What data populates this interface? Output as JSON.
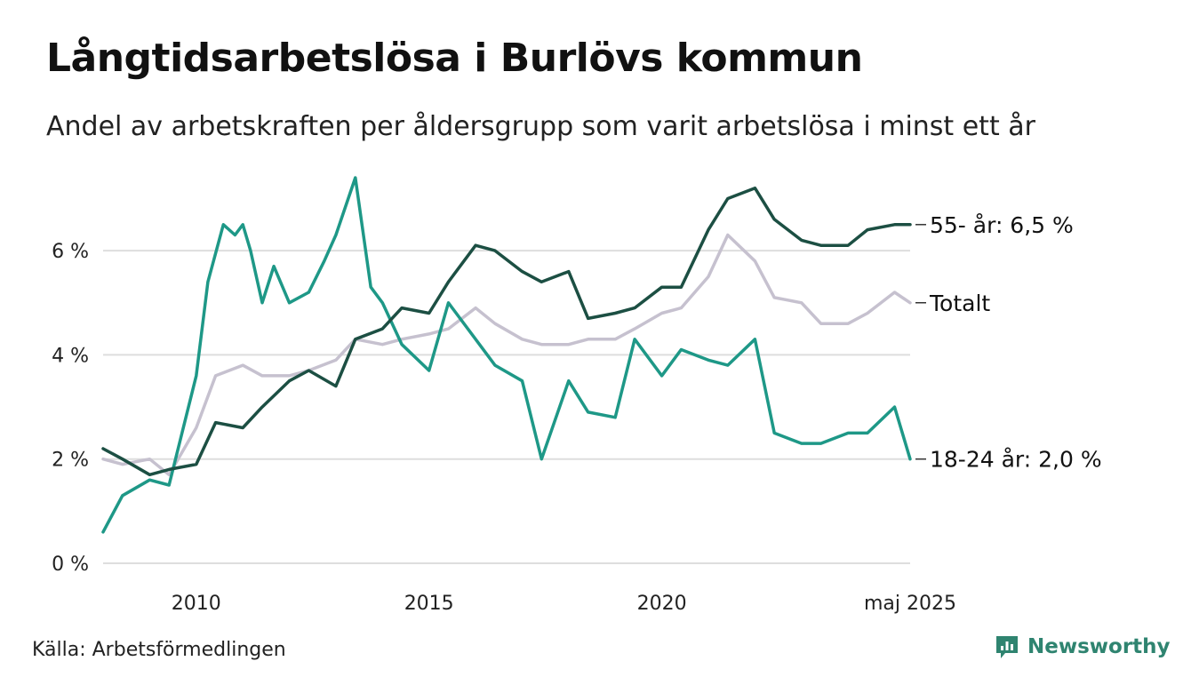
{
  "title": "Långtidsarbetslösa i Burlövs kommun",
  "subtitle": "Andel av arbetskraften per åldersgrupp som varit arbetslösa i minst ett år",
  "source": "Källa: Arbetsförmedlingen",
  "brand": {
    "name": "Newsworthy",
    "icon": "newsworthy-logo-icon",
    "color": "#2f8470"
  },
  "chart_data": {
    "type": "line",
    "x_range": [
      "2008-01",
      "2025-05"
    ],
    "ylim": [
      0,
      7.4
    ],
    "y_ticks": [
      {
        "value": 0,
        "label": "0 %"
      },
      {
        "value": 2,
        "label": "2 %"
      },
      {
        "value": 4,
        "label": "4 %"
      },
      {
        "value": 6,
        "label": "6 %"
      }
    ],
    "x_ticks": [
      {
        "value": "2010-01",
        "label": "2010"
      },
      {
        "value": "2015-01",
        "label": "2015"
      },
      {
        "value": "2020-01",
        "label": "2020"
      },
      {
        "value": "2025-05",
        "label": "maj 2025"
      }
    ],
    "grid": true,
    "legend": "end-of-line labels",
    "colors": {
      "grid": "#dedede",
      "axis_text": "#222222"
    },
    "series": [
      {
        "name": "Totalt",
        "label": "Totalt",
        "color": "#c6c1cf",
        "points": [
          [
            "2008-01",
            2.0
          ],
          [
            "2008-06",
            1.9
          ],
          [
            "2009-01",
            2.0
          ],
          [
            "2009-06",
            1.7
          ],
          [
            "2010-01",
            2.6
          ],
          [
            "2010-06",
            3.6
          ],
          [
            "2011-01",
            3.8
          ],
          [
            "2011-06",
            3.6
          ],
          [
            "2012-01",
            3.6
          ],
          [
            "2012-06",
            3.7
          ],
          [
            "2013-01",
            3.9
          ],
          [
            "2013-06",
            4.3
          ],
          [
            "2014-01",
            4.2
          ],
          [
            "2014-06",
            4.3
          ],
          [
            "2015-01",
            4.4
          ],
          [
            "2015-06",
            4.5
          ],
          [
            "2016-01",
            4.9
          ],
          [
            "2016-06",
            4.6
          ],
          [
            "2017-01",
            4.3
          ],
          [
            "2017-06",
            4.2
          ],
          [
            "2018-01",
            4.2
          ],
          [
            "2018-06",
            4.3
          ],
          [
            "2019-01",
            4.3
          ],
          [
            "2019-06",
            4.5
          ],
          [
            "2020-01",
            4.8
          ],
          [
            "2020-06",
            4.9
          ],
          [
            "2021-01",
            5.5
          ],
          [
            "2021-06",
            6.3
          ],
          [
            "2022-01",
            5.8
          ],
          [
            "2022-06",
            5.1
          ],
          [
            "2023-01",
            5.0
          ],
          [
            "2023-06",
            4.6
          ],
          [
            "2024-01",
            4.6
          ],
          [
            "2024-06",
            4.8
          ],
          [
            "2025-01",
            5.2
          ],
          [
            "2025-05",
            5.0
          ]
        ]
      },
      {
        "name": "18-24 år",
        "label": "18-24 år: 2,0 %",
        "color": "#1e9887",
        "points": [
          [
            "2008-01",
            0.6
          ],
          [
            "2008-06",
            1.3
          ],
          [
            "2009-01",
            1.6
          ],
          [
            "2009-06",
            1.5
          ],
          [
            "2010-01",
            3.6
          ],
          [
            "2010-04",
            5.4
          ],
          [
            "2010-08",
            6.5
          ],
          [
            "2010-11",
            6.3
          ],
          [
            "2011-01",
            6.5
          ],
          [
            "2011-03",
            6.0
          ],
          [
            "2011-06",
            5.0
          ],
          [
            "2011-09",
            5.7
          ],
          [
            "2012-01",
            5.0
          ],
          [
            "2012-06",
            5.2
          ],
          [
            "2012-10",
            5.8
          ],
          [
            "2013-01",
            6.3
          ],
          [
            "2013-06",
            7.4
          ],
          [
            "2013-10",
            5.3
          ],
          [
            "2014-01",
            5.0
          ],
          [
            "2014-06",
            4.2
          ],
          [
            "2015-01",
            3.7
          ],
          [
            "2015-06",
            5.0
          ],
          [
            "2016-01",
            4.3
          ],
          [
            "2016-06",
            3.8
          ],
          [
            "2017-01",
            3.5
          ],
          [
            "2017-06",
            2.0
          ],
          [
            "2018-01",
            3.5
          ],
          [
            "2018-06",
            2.9
          ],
          [
            "2019-01",
            2.8
          ],
          [
            "2019-06",
            4.3
          ],
          [
            "2020-01",
            3.6
          ],
          [
            "2020-06",
            4.1
          ],
          [
            "2021-01",
            3.9
          ],
          [
            "2021-06",
            3.8
          ],
          [
            "2022-01",
            4.3
          ],
          [
            "2022-06",
            2.5
          ],
          [
            "2023-01",
            2.3
          ],
          [
            "2023-06",
            2.3
          ],
          [
            "2024-01",
            2.5
          ],
          [
            "2024-06",
            2.5
          ],
          [
            "2025-01",
            3.0
          ],
          [
            "2025-05",
            2.0
          ]
        ]
      },
      {
        "name": "55- år",
        "label": "55- år: 6,5 %",
        "color": "#1c4f43",
        "points": [
          [
            "2008-01",
            2.2
          ],
          [
            "2008-06",
            2.0
          ],
          [
            "2009-01",
            1.7
          ],
          [
            "2009-06",
            1.8
          ],
          [
            "2010-01",
            1.9
          ],
          [
            "2010-06",
            2.7
          ],
          [
            "2011-01",
            2.6
          ],
          [
            "2011-06",
            3.0
          ],
          [
            "2012-01",
            3.5
          ],
          [
            "2012-06",
            3.7
          ],
          [
            "2013-01",
            3.4
          ],
          [
            "2013-06",
            4.3
          ],
          [
            "2014-01",
            4.5
          ],
          [
            "2014-06",
            4.9
          ],
          [
            "2015-01",
            4.8
          ],
          [
            "2015-06",
            5.4
          ],
          [
            "2016-01",
            6.1
          ],
          [
            "2016-06",
            6.0
          ],
          [
            "2017-01",
            5.6
          ],
          [
            "2017-06",
            5.4
          ],
          [
            "2018-01",
            5.6
          ],
          [
            "2018-06",
            4.7
          ],
          [
            "2019-01",
            4.8
          ],
          [
            "2019-06",
            4.9
          ],
          [
            "2020-01",
            5.3
          ],
          [
            "2020-06",
            5.3
          ],
          [
            "2021-01",
            6.4
          ],
          [
            "2021-06",
            7.0
          ],
          [
            "2022-01",
            7.2
          ],
          [
            "2022-06",
            6.6
          ],
          [
            "2023-01",
            6.2
          ],
          [
            "2023-06",
            6.1
          ],
          [
            "2024-01",
            6.1
          ],
          [
            "2024-06",
            6.4
          ],
          [
            "2025-01",
            6.5
          ],
          [
            "2025-05",
            6.5
          ]
        ]
      }
    ]
  }
}
